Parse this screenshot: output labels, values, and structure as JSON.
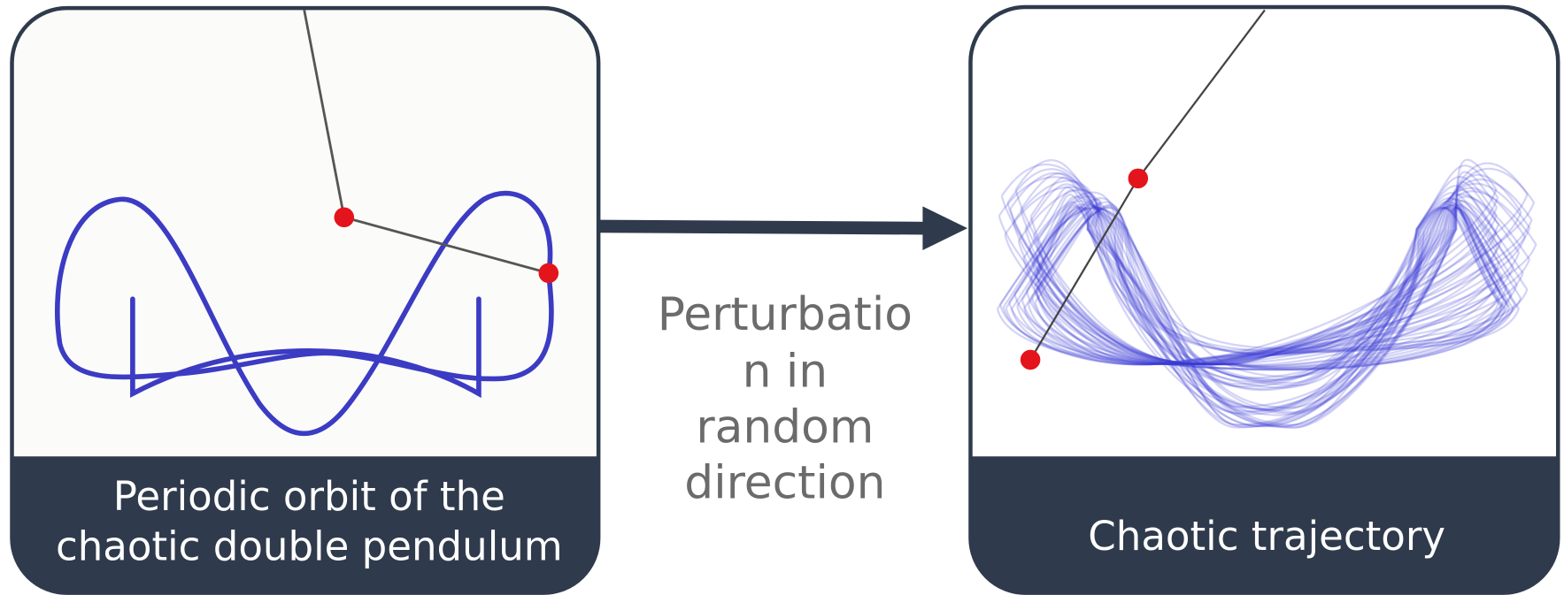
{
  "panels": [
    {
      "caption_lines": [
        "Periodic orbit of the",
        "chaotic double pendulum"
      ]
    },
    {
      "caption_lines": [
        "Chaotic trajectory"
      ]
    }
  ],
  "arrow_label_lines": [
    "Perturbatio",
    "n in",
    "random",
    "direction"
  ]
}
